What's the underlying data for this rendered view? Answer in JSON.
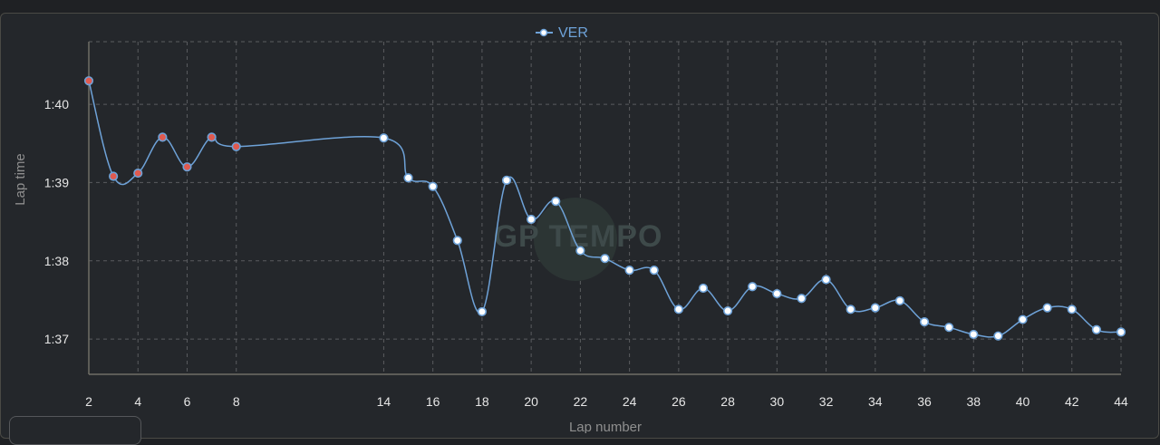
{
  "chart_data": {
    "type": "line",
    "title": "",
    "xlabel": "Lap number",
    "ylabel": "Lap time",
    "x_ticks": [
      "2",
      "4",
      "6",
      "8",
      "14",
      "16",
      "18",
      "20",
      "22",
      "24",
      "26",
      "28",
      "30",
      "32",
      "34",
      "36",
      "38",
      "40",
      "42",
      "44"
    ],
    "y_ticks": [
      {
        "label": "1:37",
        "value": 97
      },
      {
        "label": "1:38",
        "value": 98
      },
      {
        "label": "1:39",
        "value": 99
      },
      {
        "label": "1:40",
        "value": 100
      }
    ],
    "xlim": [
      2,
      44
    ],
    "ylim": [
      96.55,
      100.8
    ],
    "grid": true,
    "legend_position": "top-center",
    "series": [
      {
        "name": "VER",
        "color": "#6ea2d8",
        "points": [
          {
            "x": 2,
            "y": 100.3,
            "highlight": true
          },
          {
            "x": 3,
            "y": 99.08,
            "highlight": true
          },
          {
            "x": 4,
            "y": 99.12,
            "highlight": true
          },
          {
            "x": 5,
            "y": 99.58,
            "highlight": true
          },
          {
            "x": 6,
            "y": 99.2,
            "highlight": true
          },
          {
            "x": 7,
            "y": 99.58,
            "highlight": true
          },
          {
            "x": 8,
            "y": 99.46,
            "highlight": true
          },
          {
            "x": 14,
            "y": 99.57
          },
          {
            "x": 15,
            "y": 99.06
          },
          {
            "x": 16,
            "y": 98.95
          },
          {
            "x": 17,
            "y": 98.26
          },
          {
            "x": 18,
            "y": 97.35
          },
          {
            "x": 19,
            "y": 99.03
          },
          {
            "x": 20,
            "y": 98.53
          },
          {
            "x": 21,
            "y": 98.76
          },
          {
            "x": 22,
            "y": 98.13
          },
          {
            "x": 23,
            "y": 98.03
          },
          {
            "x": 24,
            "y": 97.88
          },
          {
            "x": 25,
            "y": 97.88
          },
          {
            "x": 26,
            "y": 97.38
          },
          {
            "x": 27,
            "y": 97.65
          },
          {
            "x": 28,
            "y": 97.36
          },
          {
            "x": 29,
            "y": 97.67
          },
          {
            "x": 30,
            "y": 97.58
          },
          {
            "x": 31,
            "y": 97.52
          },
          {
            "x": 32,
            "y": 97.76
          },
          {
            "x": 33,
            "y": 97.38
          },
          {
            "x": 34,
            "y": 97.4
          },
          {
            "x": 35,
            "y": 97.49
          },
          {
            "x": 36,
            "y": 97.22
          },
          {
            "x": 37,
            "y": 97.15
          },
          {
            "x": 38,
            "y": 97.06
          },
          {
            "x": 39,
            "y": 97.04
          },
          {
            "x": 40,
            "y": 97.25
          },
          {
            "x": 41,
            "y": 97.4
          },
          {
            "x": 42,
            "y": 97.38
          },
          {
            "x": 43,
            "y": 97.12
          },
          {
            "x": 44,
            "y": 97.09
          }
        ]
      }
    ],
    "colors": {
      "highlight_marker": "#e05a4f",
      "marker_fill": "#ffffff",
      "grid": "#5a5c5f"
    }
  },
  "watermark": "GP TEMPO"
}
